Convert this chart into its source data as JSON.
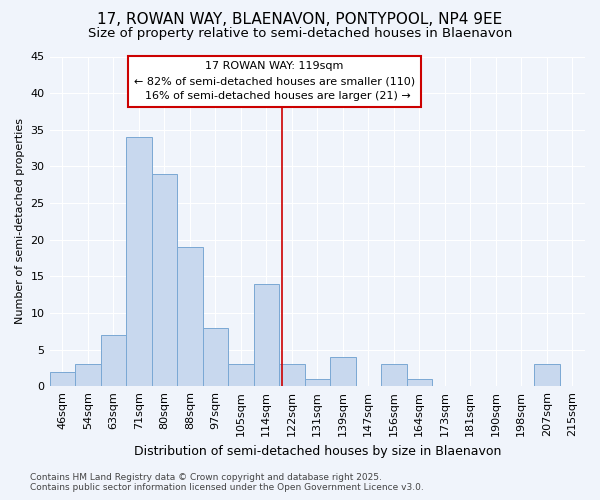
{
  "title1": "17, ROWAN WAY, BLAENAVON, PONTYPOOL, NP4 9EE",
  "title2": "Size of property relative to semi-detached houses in Blaenavon",
  "xlabel": "Distribution of semi-detached houses by size in Blaenavon",
  "ylabel": "Number of semi-detached properties",
  "categories": [
    "46sqm",
    "54sqm",
    "63sqm",
    "71sqm",
    "80sqm",
    "88sqm",
    "97sqm",
    "105sqm",
    "114sqm",
    "122sqm",
    "131sqm",
    "139sqm",
    "147sqm",
    "156sqm",
    "164sqm",
    "173sqm",
    "181sqm",
    "190sqm",
    "198sqm",
    "207sqm",
    "215sqm"
  ],
  "values": [
    2,
    3,
    7,
    34,
    29,
    19,
    8,
    3,
    14,
    3,
    1,
    4,
    0,
    3,
    1,
    0,
    0,
    0,
    0,
    3,
    0
  ],
  "bar_color": "#c8d8ee",
  "bar_edge_color": "#7aa8d4",
  "ylim": [
    0,
    45
  ],
  "yticks": [
    0,
    5,
    10,
    15,
    20,
    25,
    30,
    35,
    40,
    45
  ],
  "bg_color": "#f0f4fb",
  "grid_color": "#ffffff",
  "property_label": "17 ROWAN WAY: 119sqm",
  "pct_smaller": 82,
  "n_smaller": 110,
  "pct_larger": 16,
  "n_larger": 21,
  "annotation_box_color": "#ffffff",
  "annotation_box_edge": "#cc0000",
  "title1_fontsize": 11,
  "title2_fontsize": 9.5,
  "xlabel_fontsize": 9,
  "ylabel_fontsize": 8,
  "tick_fontsize": 8,
  "annotation_fontsize": 8,
  "footer_fontsize": 6.5,
  "footer": "Contains HM Land Registry data © Crown copyright and database right 2025.\nContains public sector information licensed under the Open Government Licence v3.0."
}
